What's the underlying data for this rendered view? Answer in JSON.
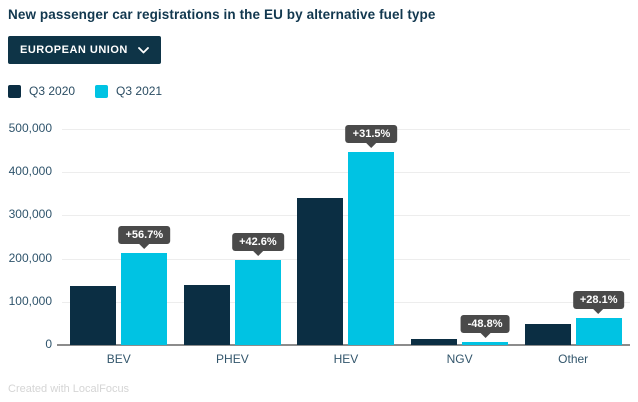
{
  "header": {
    "title": "New passenger car registrations in the EU by alternative fuel type"
  },
  "filter": {
    "label": "EUROPEAN UNION",
    "icon": "chevron-down-icon"
  },
  "legend": [
    {
      "label": "Q3 2020",
      "color": "#0b2e43"
    },
    {
      "label": "Q3 2021",
      "color": "#00c3e3"
    }
  ],
  "chart_data": {
    "type": "bar",
    "title": "New passenger car registrations in the EU by alternative fuel type",
    "categories": [
      "BEV",
      "PHEV",
      "HEV",
      "NGV",
      "Other"
    ],
    "series": [
      {
        "name": "Q3 2020",
        "color": "#0b2e43",
        "values": [
          135600,
          138300,
          340000,
          14200,
          48200
        ]
      },
      {
        "name": "Q3 2021",
        "color": "#00c3e3",
        "values": [
          212500,
          197200,
          447100,
          7270,
          61700
        ]
      }
    ],
    "change_labels": [
      "+56.7%",
      "+42.6%",
      "+31.5%",
      "-48.8%",
      "+28.1%"
    ],
    "badge_color": "#4a4a4a",
    "xlabel": "",
    "ylabel": "",
    "ylim": [
      0,
      500000
    ],
    "yticks": [
      0,
      100000,
      200000,
      300000,
      400000,
      500000
    ],
    "ytick_labels": [
      "0",
      "100,000",
      "200,000",
      "300,000",
      "400,000",
      "500,000"
    ],
    "grid": true,
    "legend_position": "top-left"
  },
  "footer": {
    "credit": "Created with LocalFocus"
  }
}
